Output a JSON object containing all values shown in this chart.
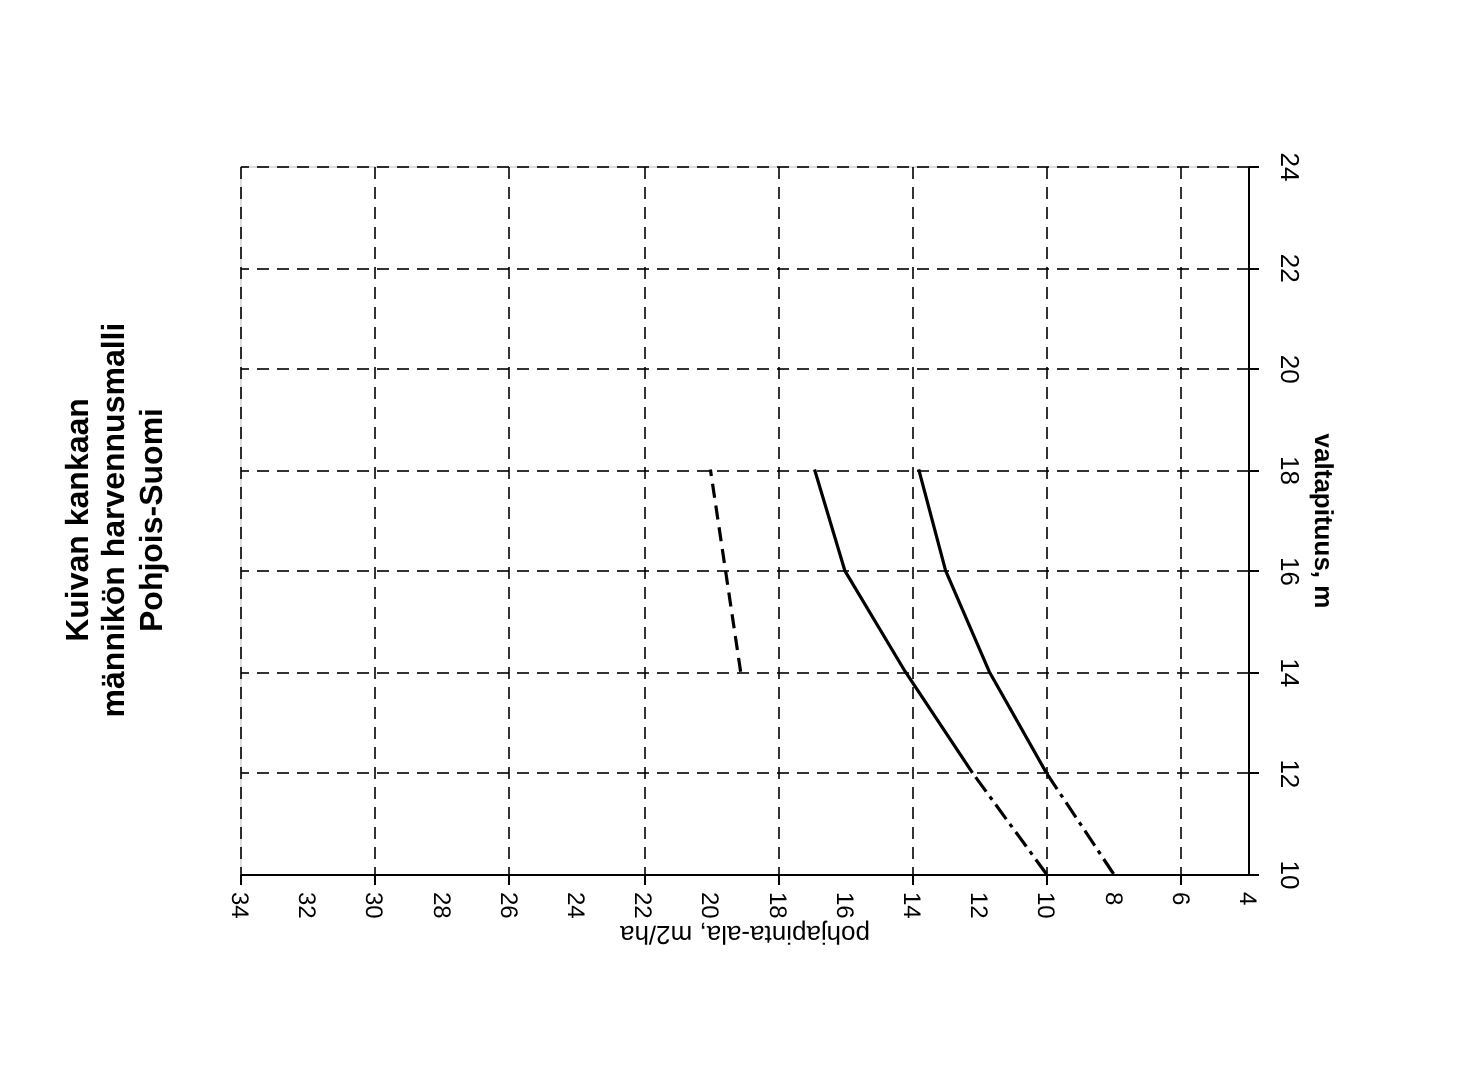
{
  "chart_data": {
    "type": "line",
    "title": [
      "Kuivan  kankaan",
      "männikön harvennusmalli"
    ],
    "subtitle": "Pohjois-Suomi",
    "xlabel": "pohjapinta-ala, m2/ha",
    "ylabel": "valtapituus, m",
    "xlim": [
      34,
      4
    ],
    "xticks": [
      34,
      32,
      30,
      28,
      26,
      24,
      22,
      20,
      18,
      16,
      14,
      12,
      10,
      8,
      6,
      4
    ],
    "ylim": [
      10,
      24
    ],
    "yticks": [
      10,
      12,
      14,
      16,
      18,
      20,
      22,
      24
    ],
    "grid": true,
    "marker": "none",
    "series": [
      {
        "color": "#000000",
        "line_style": "dashed",
        "x": [
          19.1,
          20
        ],
        "values": [
          14,
          18
        ]
      },
      {
        "color": "#000000",
        "line_style": "solid",
        "x": [
          12.2,
          14.2,
          16,
          16.9
        ],
        "values": [
          12,
          14,
          16,
          18
        ]
      },
      {
        "color": "#000000",
        "line_style": "solid",
        "x": [
          10,
          11.7,
          13,
          13.8
        ],
        "values": [
          12,
          14,
          16,
          18
        ]
      },
      {
        "color": "#000000",
        "line_style": "dotted",
        "x": [
          10,
          12.2
        ],
        "values": [
          10,
          12
        ]
      },
      {
        "color": "#000000",
        "line_style": "dotted",
        "x": [
          8,
          10
        ],
        "values": [
          10,
          12
        ]
      }
    ]
  }
}
